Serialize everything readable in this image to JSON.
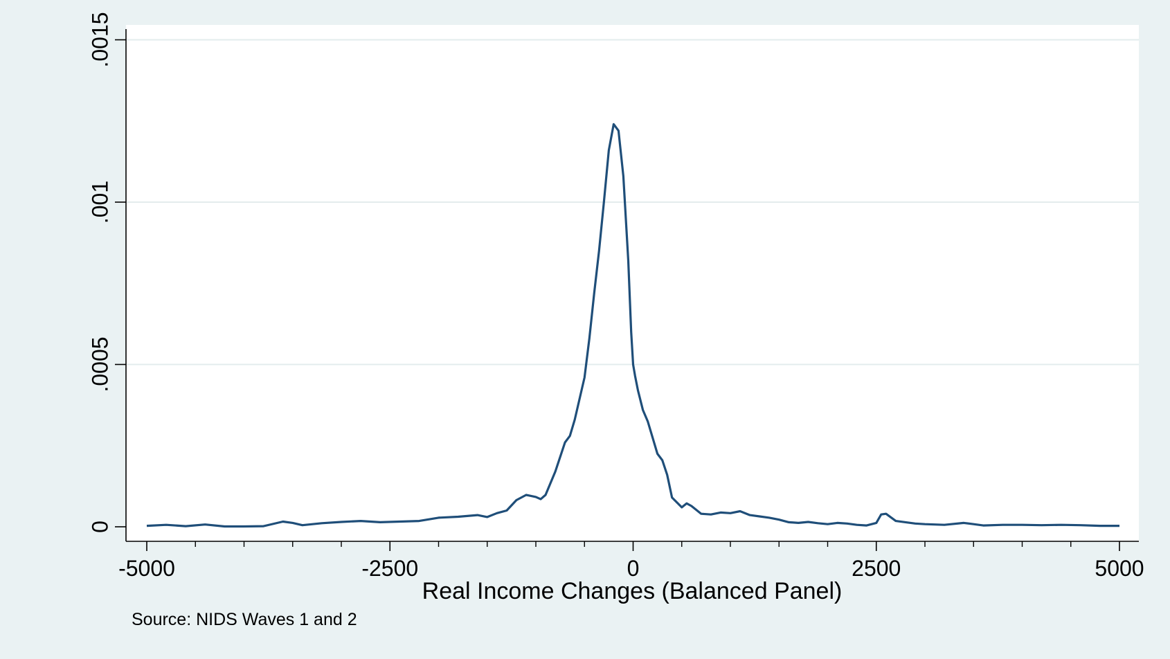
{
  "chart_data": {
    "type": "line",
    "title": "",
    "xlabel": "Real Income Changes (Balanced Panel)",
    "ylabel": "",
    "note": "Source: NIDS Waves 1 and 2",
    "xlim": [
      -5000,
      5000
    ],
    "ylim": [
      0,
      0.0015
    ],
    "x_ticks": [
      -5000,
      -2500,
      0,
      2500,
      5000
    ],
    "x_tick_labels": [
      "-5000",
      "-2500",
      "0",
      "2500",
      "5000"
    ],
    "y_ticks": [
      0,
      0.0005,
      0.001,
      0.0015
    ],
    "y_tick_labels": [
      "0",
      ".0005",
      ".001",
      ".0015"
    ],
    "grid": true,
    "series": [
      {
        "color": "#1f4e79",
        "x": [
          -5000,
          -4800,
          -4600,
          -4400,
          -4200,
          -4000,
          -3800,
          -3600,
          -3500,
          -3400,
          -3200,
          -3000,
          -2800,
          -2600,
          -2400,
          -2200,
          -2000,
          -1800,
          -1600,
          -1500,
          -1400,
          -1300,
          -1200,
          -1100,
          -1000,
          -950,
          -900,
          -800,
          -700,
          -650,
          -600,
          -500,
          -450,
          -400,
          -350,
          -300,
          -250,
          -200,
          -150,
          -100,
          -50,
          -20,
          0,
          20,
          50,
          100,
          150,
          200,
          250,
          300,
          350,
          400,
          500,
          550,
          600,
          700,
          800,
          900,
          1000,
          1100,
          1200,
          1300,
          1400,
          1500,
          1600,
          1700,
          1800,
          1900,
          2000,
          2100,
          2200,
          2300,
          2400,
          2500,
          2550,
          2600,
          2700,
          2800,
          2900,
          3000,
          3200,
          3400,
          3500,
          3600,
          3800,
          4000,
          4200,
          4400,
          4600,
          4800,
          5000
        ],
        "y": [
          3e-06,
          6e-06,
          2e-06,
          7e-06,
          1e-06,
          1e-06,
          2e-06,
          1.6e-05,
          1.2e-05,
          5e-06,
          1.1e-05,
          1.5e-05,
          1.8e-05,
          1.4e-05,
          1.6e-05,
          1.8e-05,
          2.8e-05,
          3.1e-05,
          3.6e-05,
          3e-05,
          4.2e-05,
          5e-05,
          8.2e-05,
          9.8e-05,
          9.2e-05,
          8.5e-05,
          9.8e-05,
          0.00017,
          0.00026,
          0.00028,
          0.00033,
          0.00046,
          0.00058,
          0.00072,
          0.00085,
          0.001,
          0.00116,
          0.00124,
          0.00122,
          0.00108,
          0.00082,
          0.0006,
          0.0005,
          0.000465,
          0.00042,
          0.00036,
          0.000325,
          0.000275,
          0.000225,
          0.000205,
          0.00016,
          9e-05,
          6e-05,
          7.2e-05,
          6.4e-05,
          4e-05,
          3.8e-05,
          4.4e-05,
          4.2e-05,
          4.8e-05,
          3.6e-05,
          3.2e-05,
          2.8e-05,
          2.2e-05,
          1.4e-05,
          1.2e-05,
          1.5e-05,
          1.1e-05,
          8e-06,
          1.2e-05,
          1e-05,
          6e-06,
          4e-06,
          1.2e-05,
          3.8e-05,
          4e-05,
          1.8e-05,
          1.4e-05,
          1e-05,
          8e-06,
          6e-06,
          1.2e-05,
          8e-06,
          4e-06,
          6e-06,
          6e-06,
          5e-06,
          6e-06,
          5e-06,
          3e-06,
          3e-06
        ]
      }
    ]
  }
}
